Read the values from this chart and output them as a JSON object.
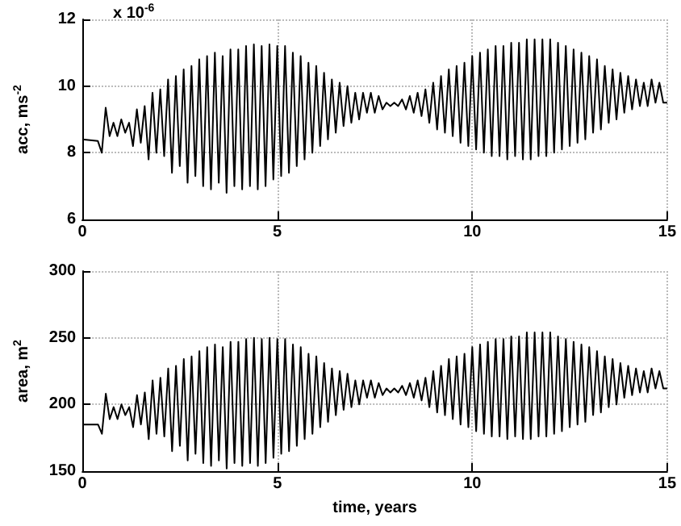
{
  "chart_data": [
    {
      "type": "line",
      "ylabel": "acc, ms$^{-2}$",
      "annotations": [
        "x 10$^{-6}$"
      ],
      "xlim": [
        0,
        15
      ],
      "xticks": [
        0,
        5,
        10,
        15
      ],
      "ylim": [
        6,
        12
      ],
      "yticks": [
        6,
        8,
        10,
        12
      ],
      "grid": true,
      "marker": "none",
      "line_style": "solid",
      "x": [
        0,
        0.4,
        0.5,
        0.6,
        0.7,
        0.8,
        0.9,
        1.0,
        1.1,
        1.2,
        1.3,
        1.4,
        1.5,
        1.6,
        1.7,
        1.8,
        1.9,
        2.0,
        2.1,
        2.2,
        2.3,
        2.4,
        2.5,
        2.6,
        2.7,
        2.8,
        2.9,
        3.0,
        3.1,
        3.2,
        3.3,
        3.4,
        3.5,
        3.6,
        3.7,
        3.8,
        3.9,
        4.0,
        4.1,
        4.2,
        4.3,
        4.4,
        4.5,
        4.6,
        4.7,
        4.8,
        4.9,
        5.0,
        5.1,
        5.2,
        5.3,
        5.4,
        5.5,
        5.6,
        5.7,
        5.8,
        5.9,
        6.0,
        6.1,
        6.2,
        6.3,
        6.4,
        6.5,
        6.6,
        6.7,
        6.8,
        6.9,
        7.0,
        7.1,
        7.2,
        7.3,
        7.4,
        7.5,
        7.6,
        7.7,
        7.8,
        7.9,
        8.0,
        8.1,
        8.2,
        8.3,
        8.4,
        8.5,
        8.6,
        8.7,
        8.8,
        8.9,
        9.0,
        9.1,
        9.2,
        9.3,
        9.4,
        9.5,
        9.6,
        9.7,
        9.8,
        9.9,
        10.0,
        10.1,
        10.2,
        10.3,
        10.4,
        10.5,
        10.6,
        10.7,
        10.8,
        10.9,
        11.0,
        11.1,
        11.2,
        11.3,
        11.4,
        11.5,
        11.6,
        11.7,
        11.8,
        11.9,
        12.0,
        12.1,
        12.2,
        12.3,
        12.4,
        12.5,
        12.6,
        12.7,
        12.8,
        12.9,
        13.0,
        13.1,
        13.2,
        13.3,
        13.4,
        13.5,
        13.6,
        13.7,
        13.8,
        13.9,
        14.0,
        14.1,
        14.2,
        14.3,
        14.4,
        14.5,
        14.6,
        14.7,
        14.8,
        14.9,
        15.0
      ],
      "series": [
        {
          "color": "#000000",
          "values": [
            8.4,
            8.35,
            8.0,
            9.35,
            8.5,
            8.9,
            8.5,
            9.0,
            8.6,
            8.9,
            8.2,
            9.3,
            8.3,
            9.4,
            7.8,
            9.8,
            8.0,
            9.9,
            7.9,
            10.2,
            7.4,
            10.3,
            7.6,
            10.5,
            7.1,
            10.6,
            7.3,
            10.8,
            7.0,
            10.9,
            6.9,
            11.0,
            7.1,
            10.9,
            6.8,
            11.1,
            7.0,
            11.1,
            6.9,
            11.2,
            7.0,
            11.25,
            6.9,
            11.2,
            7.0,
            11.25,
            7.2,
            11.2,
            7.3,
            11.2,
            7.4,
            11.0,
            7.6,
            10.9,
            7.8,
            10.7,
            8.0,
            10.6,
            8.2,
            10.4,
            8.4,
            10.2,
            8.6,
            10.1,
            8.8,
            10.0,
            8.9,
            9.8,
            9.0,
            9.8,
            9.2,
            9.8,
            9.2,
            9.7,
            9.3,
            9.5,
            9.4,
            9.5,
            9.4,
            9.6,
            9.3,
            9.7,
            9.2,
            9.8,
            9.1,
            9.9,
            8.9,
            10.1,
            8.7,
            10.3,
            8.6,
            10.5,
            8.5,
            10.6,
            8.3,
            10.7,
            8.2,
            10.9,
            8.1,
            11.0,
            8.0,
            11.1,
            7.9,
            11.2,
            7.9,
            11.2,
            7.8,
            11.3,
            7.9,
            11.3,
            7.8,
            11.4,
            7.8,
            11.4,
            7.9,
            11.4,
            7.9,
            11.4,
            8.0,
            11.3,
            8.1,
            11.2,
            8.2,
            11.1,
            8.3,
            11.0,
            8.4,
            10.9,
            8.6,
            10.8,
            8.7,
            10.6,
            8.9,
            10.5,
            9.0,
            10.4,
            9.2,
            10.3,
            9.3,
            10.2,
            9.4,
            10.1,
            9.4,
            10.2,
            9.5,
            10.1,
            9.5,
            9.5
          ]
        }
      ]
    },
    {
      "type": "line",
      "xlabel": "time, years",
      "ylabel": "area, m$^{2}$",
      "xlim": [
        0,
        15
      ],
      "xticks": [
        0,
        5,
        10,
        15
      ],
      "ylim": [
        150,
        300
      ],
      "yticks": [
        150,
        200,
        250,
        300
      ],
      "grid": true,
      "marker": "none",
      "line_style": "solid",
      "x": [
        0,
        0.4,
        0.5,
        0.6,
        0.7,
        0.8,
        0.9,
        1.0,
        1.1,
        1.2,
        1.3,
        1.4,
        1.5,
        1.6,
        1.7,
        1.8,
        1.9,
        2.0,
        2.1,
        2.2,
        2.3,
        2.4,
        2.5,
        2.6,
        2.7,
        2.8,
        2.9,
        3.0,
        3.1,
        3.2,
        3.3,
        3.4,
        3.5,
        3.6,
        3.7,
        3.8,
        3.9,
        4.0,
        4.1,
        4.2,
        4.3,
        4.4,
        4.5,
        4.6,
        4.7,
        4.8,
        4.9,
        5.0,
        5.1,
        5.2,
        5.3,
        5.4,
        5.5,
        5.6,
        5.7,
        5.8,
        5.9,
        6.0,
        6.1,
        6.2,
        6.3,
        6.4,
        6.5,
        6.6,
        6.7,
        6.8,
        6.9,
        7.0,
        7.1,
        7.2,
        7.3,
        7.4,
        7.5,
        7.6,
        7.7,
        7.8,
        7.9,
        8.0,
        8.1,
        8.2,
        8.3,
        8.4,
        8.5,
        8.6,
        8.7,
        8.8,
        8.9,
        9.0,
        9.1,
        9.2,
        9.3,
        9.4,
        9.5,
        9.6,
        9.7,
        9.8,
        9.9,
        10.0,
        10.1,
        10.2,
        10.3,
        10.4,
        10.5,
        10.6,
        10.7,
        10.8,
        10.9,
        11.0,
        11.1,
        11.2,
        11.3,
        11.4,
        11.5,
        11.6,
        11.7,
        11.8,
        11.9,
        12.0,
        12.1,
        12.2,
        12.3,
        12.4,
        12.5,
        12.6,
        12.7,
        12.8,
        12.9,
        13.0,
        13.1,
        13.2,
        13.3,
        13.4,
        13.5,
        13.6,
        13.7,
        13.8,
        13.9,
        14.0,
        14.1,
        14.2,
        14.3,
        14.4,
        14.5,
        14.6,
        14.7,
        14.8,
        14.9,
        15.0
      ],
      "series": [
        {
          "color": "#000000",
          "values": [
            185,
            185,
            178,
            208,
            189,
            198,
            189,
            200,
            192,
            198,
            183,
            207,
            185,
            209,
            174,
            218,
            178,
            220,
            176,
            227,
            165,
            229,
            169,
            234,
            158,
            236,
            163,
            240,
            156,
            243,
            154,
            245,
            158,
            243,
            152,
            247,
            156,
            247,
            154,
            249,
            156,
            250,
            154,
            249,
            156,
            250,
            160,
            249,
            163,
            249,
            165,
            245,
            169,
            243,
            174,
            238,
            178,
            236,
            183,
            231,
            187,
            227,
            192,
            225,
            196,
            223,
            198,
            218,
            200,
            218,
            205,
            218,
            205,
            216,
            207,
            212,
            209,
            212,
            209,
            214,
            207,
            216,
            205,
            218,
            203,
            220,
            198,
            225,
            194,
            229,
            192,
            234,
            189,
            236,
            185,
            238,
            183,
            243,
            180,
            245,
            178,
            247,
            176,
            249,
            176,
            249,
            174,
            251,
            176,
            251,
            174,
            254,
            174,
            254,
            176,
            254,
            176,
            254,
            178,
            251,
            180,
            249,
            183,
            247,
            185,
            245,
            187,
            243,
            192,
            240,
            194,
            236,
            198,
            234,
            200,
            231,
            205,
            229,
            207,
            227,
            209,
            225,
            209,
            227,
            212,
            225,
            212,
            212
          ]
        }
      ]
    }
  ]
}
